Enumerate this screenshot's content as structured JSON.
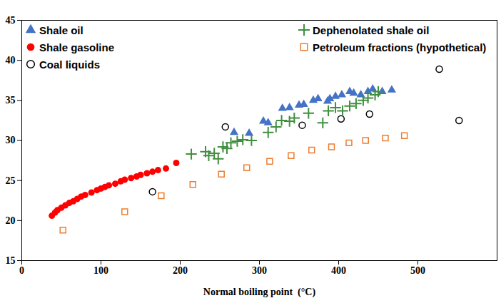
{
  "chart_data": {
    "type": "scatter",
    "x_label": "Normal boiling point  (°C)",
    "xlim": [
      0,
      600
    ],
    "ylim": [
      15,
      45
    ],
    "xticks": [
      0,
      100,
      200,
      300,
      400,
      500
    ],
    "yticks": [
      15,
      20,
      25,
      30,
      35,
      40,
      45
    ],
    "grid": false,
    "legend": "top",
    "series": [
      {
        "name": "Shale oil",
        "color": "#4472c4",
        "marker": "triangle",
        "x": [
          268,
          287,
          305,
          311,
          329,
          338,
          350,
          356,
          368,
          374,
          386,
          389,
          396,
          404,
          414,
          419,
          428,
          437,
          443,
          455,
          467
        ],
        "values": [
          31.0,
          30.9,
          32.4,
          32.2,
          34.0,
          34.1,
          34.4,
          34.5,
          35.0,
          35.2,
          34.9,
          35.2,
          35.5,
          35.7,
          36.1,
          35.9,
          35.7,
          36.1,
          36.4,
          36.1,
          36.3
        ]
      },
      {
        "name": "Shale gasoline",
        "color": "#ff0000",
        "marker": "circle",
        "x": [
          38,
          42,
          45,
          50,
          55,
          60,
          65,
          70,
          75,
          80,
          88,
          95,
          100,
          105,
          110,
          118,
          125,
          130,
          138,
          145,
          150,
          158,
          165,
          172,
          182,
          195
        ],
        "values": [
          20.6,
          21.0,
          21.3,
          21.6,
          21.9,
          22.2,
          22.4,
          22.7,
          23.0,
          23.2,
          23.5,
          23.8,
          24.0,
          24.2,
          24.4,
          24.6,
          24.9,
          25.1,
          25.3,
          25.5,
          25.7,
          25.9,
          26.1,
          26.3,
          26.5,
          27.2
        ]
      },
      {
        "name": "Coal liquids",
        "color": "#000000",
        "marker": "open-circle",
        "x": [
          165,
          257,
          354,
          403,
          439,
          527,
          552
        ],
        "values": [
          23.6,
          31.7,
          31.9,
          32.7,
          33.3,
          38.9,
          32.5
        ]
      },
      {
        "name": "Dephenolated shale oil",
        "color": "#3f8f3f",
        "marker": "plus",
        "x": [
          214,
          232,
          236,
          243,
          248,
          254,
          259,
          264,
          272,
          279,
          290,
          311,
          321,
          328,
          338,
          344,
          362,
          380,
          387,
          396,
          405,
          414,
          422,
          431,
          437,
          446,
          450
        ],
        "values": [
          28.3,
          28.6,
          28.1,
          28.4,
          27.7,
          29.2,
          29.0,
          29.7,
          29.9,
          30.1,
          30.0,
          31.0,
          31.7,
          32.5,
          32.4,
          32.8,
          33.4,
          32.2,
          33.7,
          34.1,
          33.7,
          34.3,
          34.6,
          35.0,
          35.3,
          35.7,
          36.1
        ]
      },
      {
        "name": "Petroleum fractions (hypothetical)",
        "color": "#ed7d31",
        "marker": "open-square",
        "x": [
          52,
          130,
          176,
          216,
          252,
          284,
          313,
          340,
          366,
          391,
          413,
          434,
          459,
          483
        ],
        "values": [
          18.8,
          21.1,
          23.1,
          24.5,
          25.8,
          26.6,
          27.4,
          28.1,
          28.8,
          29.2,
          29.7,
          30.0,
          30.3,
          30.6
        ]
      }
    ]
  }
}
